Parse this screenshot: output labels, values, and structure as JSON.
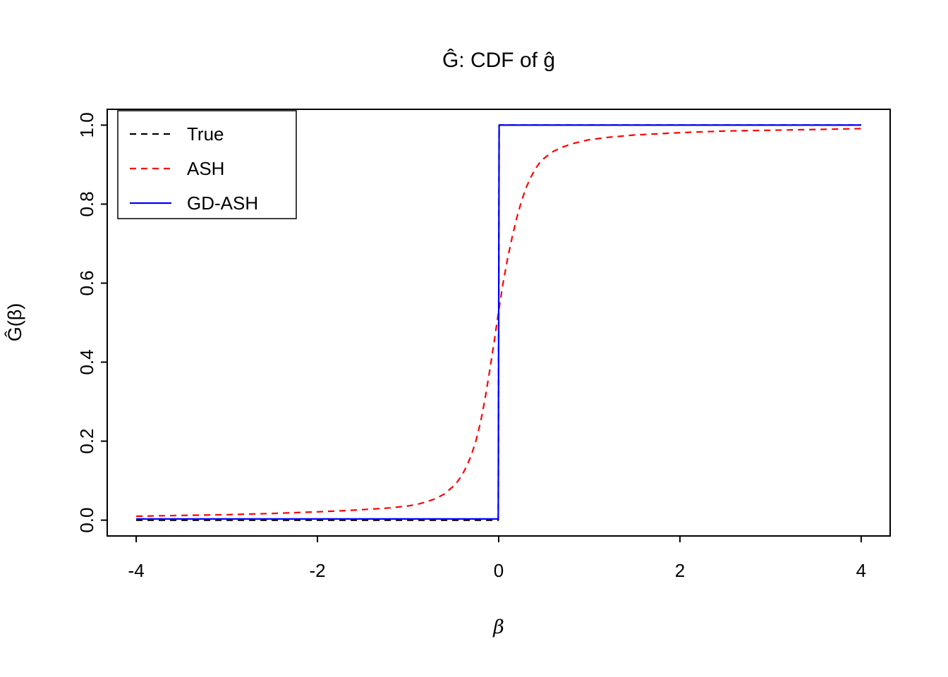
{
  "figure": {
    "background": "#ffffff",
    "frame_color": "#000000"
  },
  "chart_data": {
    "type": "line",
    "title": "Ĝ: CDF of ĝ",
    "xlabel": "β",
    "ylabel": "Ĝ(β)",
    "xlim": [
      -4,
      4
    ],
    "ylim": [
      0,
      1
    ],
    "x_ticks": [
      -4,
      -2,
      0,
      2,
      4
    ],
    "x_tick_labels": [
      "-4",
      "-2",
      "0",
      "2",
      "4"
    ],
    "y_ticks": [
      0,
      0.2,
      0.4,
      0.6,
      0.8,
      1
    ],
    "y_tick_labels": [
      "0.0",
      "0.2",
      "0.4",
      "0.6",
      "0.8",
      "1.0"
    ],
    "grid": false,
    "legend": {
      "position": "top-left",
      "entries": [
        {
          "label": "True",
          "color": "#000000",
          "style": "dashed"
        },
        {
          "label": "ASH",
          "color": "#ff0000",
          "style": "dashed"
        },
        {
          "label": "GD-ASH",
          "color": "#0000ff",
          "style": "solid"
        }
      ]
    },
    "series": [
      {
        "name": "True",
        "color": "#000000",
        "style": "dashed",
        "points": [
          [
            -4,
            0
          ],
          [
            -0.005,
            0
          ],
          [
            0.005,
            1
          ],
          [
            4,
            1
          ]
        ]
      },
      {
        "name": "ASH",
        "color": "#ff0000",
        "style": "dashed",
        "points": [
          [
            -4,
            0.01
          ],
          [
            -3.5,
            0.012
          ],
          [
            -3,
            0.014
          ],
          [
            -2.5,
            0.017
          ],
          [
            -2,
            0.021
          ],
          [
            -1.7,
            0.024
          ],
          [
            -1.4,
            0.028
          ],
          [
            -1.2,
            0.031
          ],
          [
            -1,
            0.036
          ],
          [
            -0.9,
            0.04
          ],
          [
            -0.8,
            0.046
          ],
          [
            -0.7,
            0.054
          ],
          [
            -0.6,
            0.066
          ],
          [
            -0.5,
            0.086
          ],
          [
            -0.45,
            0.099
          ],
          [
            -0.4,
            0.116
          ],
          [
            -0.35,
            0.138
          ],
          [
            -0.3,
            0.166
          ],
          [
            -0.25,
            0.202
          ],
          [
            -0.2,
            0.248
          ],
          [
            -0.15,
            0.308
          ],
          [
            -0.1,
            0.378
          ],
          [
            -0.05,
            0.452
          ],
          [
            0,
            0.53
          ],
          [
            0.05,
            0.602
          ],
          [
            0.1,
            0.664
          ],
          [
            0.15,
            0.718
          ],
          [
            0.2,
            0.766
          ],
          [
            0.25,
            0.806
          ],
          [
            0.3,
            0.84
          ],
          [
            0.35,
            0.866
          ],
          [
            0.4,
            0.888
          ],
          [
            0.45,
            0.904
          ],
          [
            0.5,
            0.916
          ],
          [
            0.6,
            0.933
          ],
          [
            0.7,
            0.944
          ],
          [
            0.8,
            0.952
          ],
          [
            0.9,
            0.958
          ],
          [
            1,
            0.963
          ],
          [
            1.2,
            0.969
          ],
          [
            1.5,
            0.975
          ],
          [
            2,
            0.981
          ],
          [
            2.5,
            0.985
          ],
          [
            3,
            0.987
          ],
          [
            3.5,
            0.989
          ],
          [
            4,
            0.991
          ]
        ]
      },
      {
        "name": "GD-ASH",
        "color": "#0000ff",
        "style": "solid",
        "points": [
          [
            -4,
            0.003
          ],
          [
            -0.005,
            0.003
          ],
          [
            0.005,
            1
          ],
          [
            4,
            1
          ]
        ]
      }
    ]
  }
}
